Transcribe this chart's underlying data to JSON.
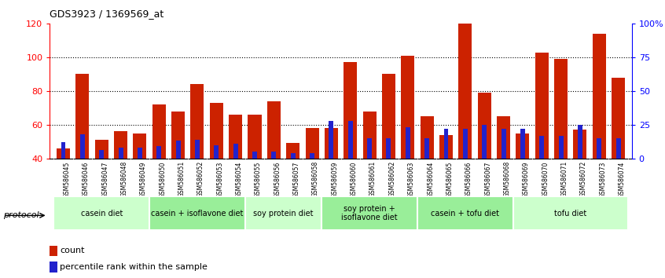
{
  "title": "GDS3923 / 1369569_at",
  "samples": [
    "GSM586045",
    "GSM586046",
    "GSM586047",
    "GSM586048",
    "GSM586049",
    "GSM586050",
    "GSM586051",
    "GSM586052",
    "GSM586053",
    "GSM586054",
    "GSM586055",
    "GSM586056",
    "GSM586057",
    "GSM586058",
    "GSM586059",
    "GSM586060",
    "GSM586061",
    "GSM586062",
    "GSM586063",
    "GSM586064",
    "GSM586065",
    "GSM586066",
    "GSM586067",
    "GSM586068",
    "GSM586069",
    "GSM586070",
    "GSM586071",
    "GSM586072",
    "GSM586073",
    "GSM586074"
  ],
  "count_values": [
    46,
    90,
    51,
    56,
    55,
    72,
    68,
    84,
    73,
    66,
    66,
    74,
    49,
    58,
    58,
    97,
    68,
    90,
    101,
    65,
    54,
    120,
    79,
    65,
    55,
    103,
    99,
    57,
    114,
    88
  ],
  "percentile_values": [
    12,
    18,
    6,
    8,
    8,
    9,
    13,
    14,
    10,
    11,
    5,
    5,
    4,
    4,
    28,
    28,
    15,
    15,
    23,
    15,
    22,
    22,
    25,
    22,
    22,
    17,
    17,
    25,
    15,
    15
  ],
  "bar_color": "#cc2200",
  "percentile_color": "#2222cc",
  "ylim_left": [
    40,
    120
  ],
  "ylim_right": [
    0,
    100
  ],
  "yticks_left": [
    40,
    60,
    80,
    100,
    120
  ],
  "yticks_right": [
    0,
    25,
    50,
    75,
    100
  ],
  "ytick_labels_right": [
    "0",
    "25",
    "50",
    "75",
    "100%"
  ],
  "groups": [
    {
      "label": "casein diet",
      "start": 0,
      "end": 4,
      "color": "#ccffcc"
    },
    {
      "label": "casein + isoflavone diet",
      "start": 5,
      "end": 9,
      "color": "#99ee99"
    },
    {
      "label": "soy protein diet",
      "start": 10,
      "end": 13,
      "color": "#ccffcc"
    },
    {
      "label": "soy protein +\nisoflavone diet",
      "start": 14,
      "end": 18,
      "color": "#99ee99"
    },
    {
      "label": "casein + tofu diet",
      "start": 19,
      "end": 23,
      "color": "#99ee99"
    },
    {
      "label": "tofu diet",
      "start": 24,
      "end": 29,
      "color": "#ccffcc"
    }
  ],
  "protocol_label": "protocol",
  "legend_count_label": "count",
  "legend_percentile_label": "percentile rank within the sample",
  "background_color": "#ffffff"
}
